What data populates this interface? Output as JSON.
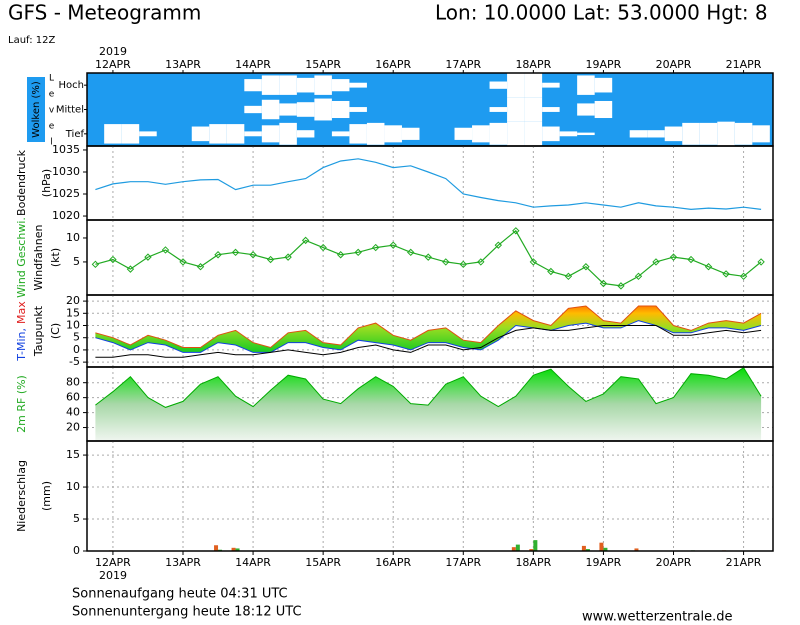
{
  "header": {
    "title": "GFS - Meteogramm",
    "location": "Lon: 10.0000 Lat: 53.0000 Hgt: 8",
    "run": "Lauf: 12Z"
  },
  "time_axis": {
    "year": "2019",
    "xlim": [
      -0.37,
      9.42
    ],
    "xticks": [
      {
        "value": 0,
        "label": "12APR"
      },
      {
        "value": 1,
        "label": "13APR"
      },
      {
        "value": 2,
        "label": "14APR"
      },
      {
        "value": 3,
        "label": "15APR"
      },
      {
        "value": 4,
        "label": "16APR"
      },
      {
        "value": 5,
        "label": "17APR"
      },
      {
        "value": 6,
        "label": "18APR"
      },
      {
        "value": 7,
        "label": "19APR"
      },
      {
        "value": 8,
        "label": "20APR"
      },
      {
        "value": 9,
        "label": "21APR"
      }
    ]
  },
  "chart_data": [
    {
      "type": "clouds",
      "title": "Wolken (%)",
      "level_label": "L e v e l",
      "color": "#1e9bf0",
      "cloud_color": "#ffffff",
      "x": [
        -0.25,
        0,
        0.25,
        0.5,
        0.75,
        1,
        1.25,
        1.5,
        1.75,
        2,
        2.25,
        2.5,
        2.75,
        3,
        3.25,
        3.5,
        3.75,
        4,
        4.25,
        4.5,
        4.75,
        5,
        5.25,
        5.5,
        5.75,
        6,
        6.25,
        6.5,
        6.75,
        7,
        7.25,
        7.5,
        7.75,
        8,
        8.25,
        8.5,
        8.75,
        9,
        9.25
      ],
      "levels": [
        {
          "name": "Hoch",
          "values": [
            0,
            0,
            0,
            0,
            0,
            0,
            0,
            0,
            0,
            0.5,
            0.8,
            0.8,
            0.6,
            0.8,
            0.5,
            0.2,
            0,
            0,
            0,
            0,
            0,
            0,
            0,
            0.3,
            1,
            1,
            0.2,
            0,
            0.8,
            0.6,
            0,
            0,
            0,
            0,
            0,
            0,
            0,
            0,
            0
          ]
        },
        {
          "name": "Mittel",
          "values": [
            0,
            0,
            0,
            0,
            0,
            0,
            0,
            0,
            0,
            0.3,
            0.8,
            0.5,
            0.6,
            0.9,
            0.7,
            0.2,
            0,
            0,
            0,
            0,
            0,
            0,
            0,
            0.2,
            1,
            1,
            0.2,
            0,
            0.5,
            0.7,
            0,
            0,
            0,
            0,
            0,
            0,
            0,
            0,
            0
          ]
        },
        {
          "name": "Tief",
          "values": [
            0,
            0.8,
            0.8,
            0.2,
            0,
            0,
            0.6,
            0.8,
            0.8,
            0.2,
            0.7,
            0.9,
            0.3,
            0,
            0.2,
            0.8,
            0.9,
            0.7,
            0.5,
            0,
            0,
            0.5,
            0.7,
            0.9,
            1,
            1,
            0.6,
            0.2,
            0.1,
            0,
            0,
            0.3,
            0.3,
            0.6,
            0.9,
            0.9,
            1,
            0.9,
            0.7
          ]
        }
      ]
    },
    {
      "type": "line",
      "ylabel": [
        [
          {
            "text": "Bodendruck",
            "color": "#000000"
          }
        ],
        [
          {
            "text": "(hPa)",
            "color": "#000000"
          }
        ]
      ],
      "color": "#1f9be0",
      "markers": false,
      "ylim": [
        1019.1,
        1035.9
      ],
      "yticks": [
        1020,
        1025,
        1030,
        1035
      ],
      "grid": false,
      "x": [
        -0.25,
        0,
        0.25,
        0.5,
        0.75,
        1,
        1.25,
        1.5,
        1.75,
        2,
        2.25,
        2.5,
        2.75,
        3,
        3.25,
        3.5,
        3.75,
        4,
        4.25,
        4.5,
        4.75,
        5,
        5.25,
        5.5,
        5.75,
        6,
        6.25,
        6.5,
        6.75,
        7,
        7.25,
        7.5,
        7.75,
        8,
        8.25,
        8.5,
        8.75,
        9,
        9.25
      ],
      "values": [
        1026.0,
        1027.3,
        1027.8,
        1027.8,
        1027.2,
        1027.8,
        1028.2,
        1028.3,
        1026.0,
        1027.0,
        1027.0,
        1027.8,
        1028.5,
        1031.0,
        1032.5,
        1033.0,
        1032.2,
        1031.0,
        1031.4,
        1030.0,
        1028.5,
        1025.0,
        1024.2,
        1023.5,
        1023.0,
        1022.0,
        1022.3,
        1022.5,
        1023.0,
        1022.5,
        1022.0,
        1023.0,
        1022.3,
        1022.0,
        1021.5,
        1021.8,
        1021.6,
        1022.0,
        1021.5
      ]
    },
    {
      "type": "line",
      "ylabel": [
        [
          {
            "text": "Wind Geschwi.",
            "color": "#22aa22"
          }
        ],
        [
          {
            "text": "Windfahnen",
            "color": "#000000"
          }
        ],
        [
          {
            "text": "(kt)",
            "color": "#000000"
          }
        ]
      ],
      "color": "#22aa22",
      "markers": true,
      "ylim": [
        -1.9,
        13.75
      ],
      "yticks": [
        5,
        10
      ],
      "grid": false,
      "x": [
        -0.25,
        0,
        0.25,
        0.5,
        0.75,
        1,
        1.25,
        1.5,
        1.75,
        2,
        2.25,
        2.5,
        2.75,
        3,
        3.25,
        3.5,
        3.75,
        4,
        4.25,
        4.5,
        4.75,
        5,
        5.25,
        5.5,
        5.75,
        6,
        6.25,
        6.5,
        6.75,
        7,
        7.25,
        7.5,
        7.75,
        8,
        8.25,
        8.5,
        8.75,
        9,
        9.25
      ],
      "values": [
        4.5,
        5.5,
        3.5,
        6,
        7.5,
        5,
        4,
        6.5,
        7,
        6.5,
        5.5,
        6,
        9.5,
        8,
        6.5,
        7,
        8,
        8.5,
        7,
        6,
        5,
        4.5,
        5,
        8.5,
        11.5,
        5,
        3,
        2,
        4,
        0.5,
        0,
        2,
        5,
        6,
        5.5,
        4,
        2.5,
        2,
        5
      ]
    },
    {
      "type": "band",
      "ylabel": [
        [
          {
            "text": "T-Min,",
            "color": "#1040e0"
          },
          {
            "text": "Max",
            "color": "#e02020"
          }
        ],
        [
          {
            "text": "Taupunkt",
            "color": "#000000"
          }
        ],
        [
          {
            "text": "(C)",
            "color": "#000000"
          }
        ]
      ],
      "ylim": [
        -7.0,
        22.5
      ],
      "yticks": [
        -5,
        0,
        5,
        10,
        15,
        20
      ],
      "grid": true,
      "x": [
        -0.25,
        0,
        0.25,
        0.5,
        0.75,
        1,
        1.25,
        1.5,
        1.75,
        2,
        2.25,
        2.5,
        2.75,
        3,
        3.25,
        3.5,
        3.75,
        4,
        4.25,
        4.5,
        4.75,
        5,
        5.25,
        5.5,
        5.75,
        6,
        6.25,
        6.5,
        6.75,
        7,
        7.25,
        7.5,
        7.75,
        8,
        8.25,
        8.5,
        8.75,
        9,
        9.25
      ],
      "series": [
        {
          "color": "#1040e0",
          "values": [
            5,
            3,
            0,
            3,
            2,
            -1,
            -1,
            3,
            2,
            -1,
            -1,
            3,
            3,
            1,
            0,
            4,
            3,
            2,
            0,
            3,
            3,
            1,
            0,
            4,
            10,
            9,
            8,
            10,
            11,
            9,
            9,
            12,
            10,
            7,
            7,
            9,
            9,
            8,
            10
          ]
        },
        {
          "color": "#e05010",
          "values": [
            7,
            5,
            2,
            6,
            4,
            1,
            1,
            6,
            8,
            3,
            1,
            7,
            8,
            3,
            2,
            9,
            11,
            6,
            4,
            8,
            9,
            4,
            3,
            10,
            16,
            12,
            10,
            17,
            18,
            12,
            11,
            18,
            18,
            10,
            8,
            11,
            12,
            11,
            15
          ]
        },
        {
          "color": "#000000",
          "values": [
            -3,
            -3,
            -2,
            -2,
            -3,
            -3,
            -2,
            -1,
            -2,
            -2,
            -1,
            0,
            -1,
            -2,
            -1,
            1,
            2,
            0,
            -1,
            2,
            2,
            0,
            1,
            5,
            8,
            9,
            8,
            8,
            9,
            10,
            10,
            10,
            10,
            6,
            6,
            7,
            8,
            7,
            8
          ]
        }
      ]
    },
    {
      "type": "area",
      "ylabel": [
        [
          {
            "text": "2m RF (%)",
            "color": "#22aa22"
          }
        ]
      ],
      "color": "#00aa00",
      "ylim": [
        2,
        101
      ],
      "yticks": [
        20,
        40,
        60,
        80
      ],
      "grid": true,
      "x": [
        -0.25,
        0,
        0.25,
        0.5,
        0.75,
        1,
        1.25,
        1.5,
        1.75,
        2,
        2.25,
        2.5,
        2.75,
        3,
        3.25,
        3.5,
        3.75,
        4,
        4.25,
        4.5,
        4.75,
        5,
        5.25,
        5.5,
        5.75,
        6,
        6.25,
        6.5,
        6.75,
        7,
        7.25,
        7.5,
        7.75,
        8,
        8.25,
        8.5,
        8.75,
        9,
        9.25
      ],
      "values": [
        50,
        68,
        88,
        60,
        47,
        55,
        78,
        88,
        62,
        48,
        70,
        90,
        85,
        58,
        52,
        72,
        88,
        75,
        52,
        50,
        78,
        88,
        62,
        48,
        62,
        90,
        98,
        75,
        55,
        65,
        88,
        85,
        52,
        60,
        92,
        90,
        85,
        100,
        62
      ]
    },
    {
      "type": "bar",
      "ylabel": [
        [
          {
            "text": "Niederschlag",
            "color": "#000000"
          }
        ],
        [
          {
            "text": "(mm)",
            "color": "#000000"
          }
        ]
      ],
      "ylim": [
        0,
        17.2
      ],
      "yticks": [
        0,
        5,
        10,
        15
      ],
      "grid": true,
      "x": [
        -0.25,
        0,
        0.25,
        0.5,
        0.75,
        1,
        1.25,
        1.5,
        1.75,
        2,
        2.25,
        2.5,
        2.75,
        3,
        3.25,
        3.5,
        3.75,
        4,
        4.25,
        4.5,
        4.75,
        5,
        5.25,
        5.5,
        5.75,
        6,
        6.25,
        6.5,
        6.75,
        7,
        7.25,
        7.5,
        7.75,
        8,
        8.25,
        8.5,
        8.75,
        9,
        9.25
      ],
      "series": [
        {
          "color": "#e06020",
          "values": [
            0,
            0.1,
            0,
            0,
            0,
            0,
            0,
            0.9,
            0.5,
            0,
            0,
            0,
            0,
            0,
            0,
            0,
            0,
            0,
            0,
            0,
            0,
            0,
            0,
            0,
            0.6,
            0.3,
            0,
            0,
            0.8,
            1.3,
            0,
            0.4,
            0,
            0,
            0,
            0,
            0.1,
            0,
            0
          ]
        },
        {
          "color": "#30b030",
          "values": [
            0,
            0,
            0,
            0,
            0,
            0,
            0,
            0.2,
            0.4,
            0,
            0,
            0,
            0,
            0,
            0,
            0,
            0,
            0,
            0,
            0,
            0,
            0,
            0,
            0,
            1.0,
            1.7,
            0,
            0,
            0.3,
            0.5,
            0,
            0,
            0,
            0,
            0.1,
            0,
            0,
            0,
            0
          ]
        }
      ]
    }
  ],
  "footer": {
    "sunrise": "Sonnenaufgang heute 04:31 UTC",
    "sunset": "Sonnenuntergang heute 18:12 UTC",
    "source": "www.wetterzentrale.de"
  }
}
